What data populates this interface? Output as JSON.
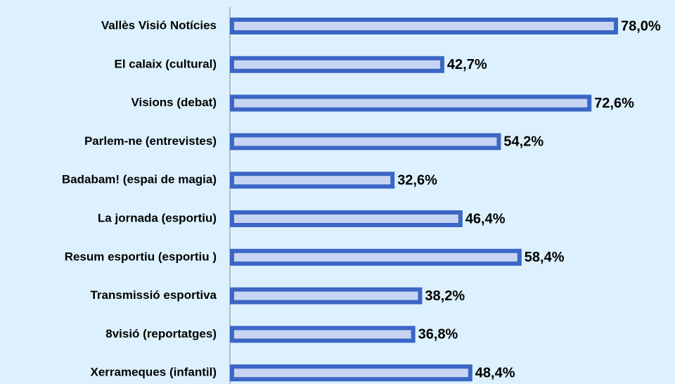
{
  "chart_data": {
    "type": "bar",
    "orientation": "horizontal",
    "categories": [
      "Vallès Visió Notícies",
      "El calaix (cultural)",
      "Visions (debat)",
      "Parlem-ne (entrevistes)",
      "Badabam! (espai de magia)",
      "La jornada (esportiu)",
      "Resum esportiu (esportiu )",
      "Transmissió esportiva",
      "8visió (reportatges)",
      "Xerrameques (infantil)"
    ],
    "values": [
      78.0,
      42.7,
      72.6,
      54.2,
      32.6,
      46.4,
      58.4,
      38.2,
      36.8,
      48.4
    ],
    "value_labels": [
      "78,0%",
      "42,7%",
      "72,6%",
      "54,2%",
      "32,6%",
      "46,4%",
      "58,4%",
      "38,2%",
      "36,8%",
      "48,4%"
    ],
    "color": "#3b66c6"
  }
}
